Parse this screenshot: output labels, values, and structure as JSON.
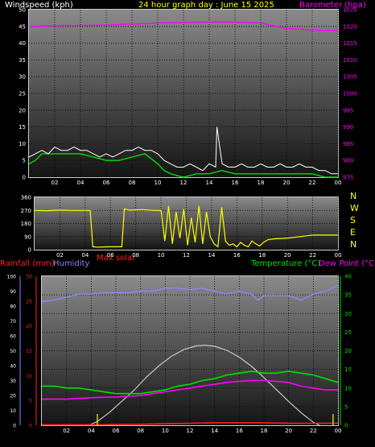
{
  "header": {
    "wind_label": "Windspeed (kph)",
    "title": "24 hour graph day : June 15 2025",
    "baro_label": "Barometer (hpa)",
    "max_solar": "Max solar",
    "rain_label": "Rainfall (mm)",
    "humidity_label": "Humidity",
    "temp_label": "Temperature (°C)",
    "dew_label": "Dew Point (°C)"
  },
  "colors": {
    "wind_label": "#ffffff",
    "title": "#ffff00",
    "baro": "#ff00ff",
    "rain": "#ff2020",
    "humidity": "#8888ff",
    "temp": "#00e000",
    "dew": "#ff00ff",
    "direction": "#ffff00",
    "solar": "#c8c8c8",
    "max_solar": "#ff2020"
  },
  "compass": [
    "N",
    "W",
    "S",
    "E",
    "N"
  ],
  "chart_data": [
    {
      "type": "line",
      "name": "wind_and_pressure",
      "x_ticks": [
        "02",
        "04",
        "06",
        "08",
        "10",
        "12",
        "14",
        "16",
        "18",
        "20",
        "22",
        "00"
      ],
      "xlim": [
        0,
        24
      ],
      "ylabel": "Windspeed (kph)",
      "ylim": [
        0,
        50
      ],
      "y_ticks": [
        "0",
        "5",
        "10",
        "15",
        "20",
        "25",
        "30",
        "35",
        "40",
        "45",
        "50"
      ],
      "y2label": "Barometer (hpa)",
      "y2lim": [
        975,
        1025
      ],
      "y2_ticks": [
        "975",
        "980",
        "985",
        "990",
        "995",
        "1000",
        "1005",
        "1010",
        "1015",
        "1020",
        "1025"
      ],
      "series": [
        {
          "key": "barometer",
          "axis": "y2",
          "x": [
            0,
            2,
            4,
            6,
            8,
            10,
            12,
            14,
            16,
            18,
            19,
            20,
            21,
            22,
            23,
            24
          ],
          "values": [
            1020.0,
            1020.2,
            1020.3,
            1020.4,
            1020.7,
            1021.0,
            1021.2,
            1021.3,
            1021.3,
            1021.0,
            1020.2,
            1019.4,
            1019.2,
            1018.9,
            1018.8,
            1018.8
          ]
        },
        {
          "key": "wind_average",
          "axis": "y",
          "x": [
            0,
            0.5,
            1,
            2,
            3,
            4,
            5,
            6,
            7,
            8,
            9,
            10,
            10.5,
            11,
            12,
            13,
            14,
            15,
            16,
            17,
            18,
            19,
            20,
            21,
            22,
            23,
            24
          ],
          "values": [
            4,
            5,
            7,
            7,
            7,
            7,
            6,
            5,
            5,
            6,
            7,
            4,
            2,
            1,
            0,
            1,
            1,
            2,
            1,
            1,
            1,
            1,
            1,
            1,
            1,
            0,
            0
          ]
        },
        {
          "key": "wind_gust",
          "axis": "y",
          "x": [
            0,
            0.5,
            1,
            1.5,
            2,
            2.5,
            3,
            3.5,
            4,
            4.5,
            5,
            5.5,
            6,
            6.5,
            7,
            7.5,
            8,
            8.5,
            9,
            9.5,
            10,
            10.5,
            11,
            11.5,
            12,
            12.5,
            13,
            13.5,
            14,
            14.5,
            14.6,
            15,
            15.5,
            16,
            16.5,
            17,
            17.5,
            18,
            18.5,
            19,
            19.5,
            20,
            20.5,
            21,
            21.5,
            22,
            22.5,
            23,
            23.5,
            24
          ],
          "values": [
            6,
            7,
            8,
            7,
            9,
            8,
            8,
            9,
            8,
            8,
            7,
            6,
            7,
            6,
            7,
            8,
            8,
            9,
            8,
            8,
            7,
            5,
            4,
            3,
            3,
            4,
            3,
            2,
            4,
            3,
            15,
            4,
            3,
            3,
            4,
            3,
            3,
            4,
            3,
            3,
            4,
            3,
            3,
            4,
            3,
            3,
            2,
            2,
            1,
            1
          ]
        }
      ]
    },
    {
      "type": "line",
      "name": "wind_direction",
      "x_ticks": [
        "02",
        "04",
        "06",
        "08",
        "10",
        "12",
        "14",
        "16",
        "18",
        "20",
        "22",
        "00"
      ],
      "xlim": [
        0,
        24
      ],
      "ylim": [
        0,
        360
      ],
      "y_ticks": [
        "0",
        "90",
        "180",
        "270",
        "360"
      ],
      "series": [
        {
          "key": "direction",
          "x": [
            0,
            1,
            2,
            3,
            4.4,
            4.6,
            5,
            6,
            6.9,
            7.1,
            7.5,
            8.5,
            9.5,
            10.0,
            10.3,
            10.6,
            10.9,
            11.2,
            11.5,
            11.8,
            12.1,
            12.4,
            12.7,
            13.0,
            13.3,
            13.6,
            13.9,
            14.2,
            14.5,
            14.8,
            15.1,
            15.4,
            15.7,
            16.0,
            16.3,
            16.6,
            16.9,
            17.2,
            17.5,
            17.8,
            18.1,
            18.5,
            19,
            20,
            21,
            22,
            23,
            24
          ],
          "values": [
            270,
            268,
            272,
            270,
            270,
            20,
            18,
            20,
            20,
            280,
            272,
            275,
            270,
            270,
            60,
            300,
            40,
            260,
            80,
            280,
            30,
            220,
            50,
            300,
            40,
            260,
            90,
            40,
            20,
            290,
            60,
            30,
            40,
            20,
            50,
            30,
            20,
            60,
            40,
            25,
            50,
            70,
            75,
            80,
            90,
            100,
            100,
            100
          ]
        }
      ]
    },
    {
      "type": "line",
      "name": "temperature_humidity_rain",
      "x_ticks": [
        "02",
        "04",
        "06",
        "08",
        "10",
        "12",
        "14",
        "16",
        "18",
        "20",
        "22",
        "00"
      ],
      "xlim": [
        0,
        24
      ],
      "y_left_outer_label": "Humidity",
      "y_left_outer_lim": [
        0,
        100
      ],
      "y_left_outer_ticks": [
        "0",
        "10",
        "20",
        "30",
        "40",
        "50",
        "60",
        "70",
        "80",
        "90",
        "100"
      ],
      "y_left_inner_label": "Rainfall (mm)",
      "y_left_inner_lim": [
        0,
        30
      ],
      "y_left_inner_ticks": [
        "0",
        "5",
        "10",
        "15",
        "20",
        "25",
        "30"
      ],
      "y_right_label": "Temperature (°C)",
      "y_right_lim": [
        0,
        40
      ],
      "y_right_ticks": [
        "0",
        "5",
        "10",
        "15",
        "20",
        "25",
        "30",
        "35",
        "40"
      ],
      "series": [
        {
          "key": "humidity",
          "axis": "left_outer",
          "x": [
            0,
            1,
            2,
            3,
            4,
            5,
            6,
            7,
            8,
            9,
            10,
            11,
            12,
            13,
            14,
            15,
            16,
            17,
            17.5,
            18,
            19,
            20,
            21,
            22,
            23,
            24
          ],
          "values": [
            83,
            84,
            86,
            88,
            88,
            89,
            89,
            89,
            90,
            90,
            92,
            92,
            91,
            92,
            90,
            88,
            90,
            88,
            84,
            87,
            87,
            87,
            84,
            88,
            90,
            94
          ]
        },
        {
          "key": "solar",
          "axis": "right",
          "x": [
            3.8,
            4.5,
            5.5,
            6.5,
            7.5,
            8.5,
            9.5,
            10.5,
            11.5,
            12.5,
            13.2,
            14,
            15,
            16,
            17,
            18,
            19,
            20,
            21,
            22,
            22.5
          ],
          "values": [
            0,
            1,
            3.5,
            6.5,
            9.5,
            13,
            16,
            18.5,
            20.3,
            21.3,
            21.5,
            21.2,
            20.1,
            18.3,
            15.8,
            12.8,
            9.6,
            6.4,
            3.4,
            0.8,
            0
          ]
        },
        {
          "key": "temperature",
          "axis": "right",
          "x": [
            0,
            1,
            2,
            3,
            4,
            5,
            6,
            7,
            8,
            9,
            10,
            11,
            12,
            13,
            14,
            15,
            16,
            17,
            18,
            19,
            20,
            21,
            22,
            23,
            24
          ],
          "values": [
            10.5,
            10.5,
            10,
            10,
            9.5,
            9,
            8.5,
            8.5,
            8.5,
            9,
            9.5,
            10.5,
            11,
            12,
            12.5,
            13.5,
            14,
            14.5,
            14,
            14,
            14.5,
            14,
            13.5,
            12.5,
            11.5
          ]
        },
        {
          "key": "dew_point",
          "axis": "right",
          "x": [
            0,
            1,
            2,
            3,
            4,
            5,
            6,
            7,
            8,
            9,
            10,
            11,
            12,
            13,
            14,
            15,
            16,
            17,
            18,
            19,
            20,
            21,
            22,
            23,
            24
          ],
          "values": [
            7.0,
            7.0,
            7.0,
            7.2,
            7.4,
            7.5,
            7.6,
            7.8,
            8,
            8.5,
            9,
            9.5,
            10,
            10.5,
            11,
            11.5,
            11.8,
            12,
            12,
            11.8,
            11.5,
            10.5,
            10,
            9.5,
            9.5
          ]
        },
        {
          "key": "rainfall",
          "axis": "left_inner",
          "x": [
            0,
            4,
            8,
            10,
            12,
            14,
            16,
            18,
            20,
            22,
            24
          ],
          "values": [
            0.1,
            0.1,
            0.2,
            0.3,
            0.4,
            0.5,
            0.5,
            0.5,
            0.4,
            0.4,
            0.4
          ]
        }
      ],
      "markers": [
        {
          "key": "max_solar",
          "x": [
            4.5,
            23.6
          ]
        }
      ]
    }
  ]
}
